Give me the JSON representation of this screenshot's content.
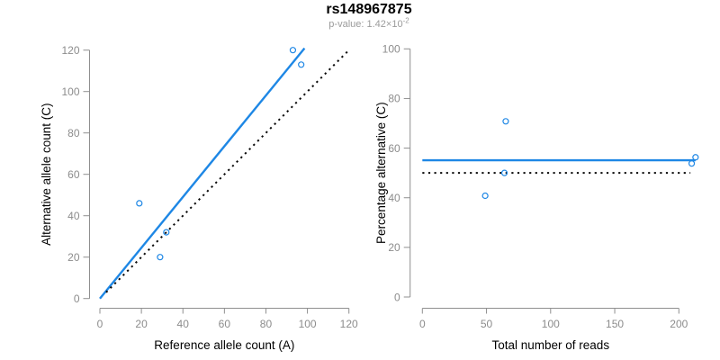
{
  "header": {
    "title": "rs148967875",
    "subtitle_label": "p-value: 1.42×10",
    "subtitle_exponent": "-2"
  },
  "colors": {
    "accent_blue": "#1E87E5",
    "axis_line_gray": "#8F8F8F",
    "tick_label_gray": "#8C8C8C",
    "axis_title_black": "#000000",
    "subtitle_gray": "#9B9B9B",
    "reference_line_black": "#0A0A0A",
    "background": "#FFFFFF"
  },
  "chart_data": [
    {
      "id": "ref-vs-alt-scatter",
      "type": "scatter",
      "title": "rs148967875",
      "xlabel": "Reference allele count (A)",
      "ylabel": "Alternative allele count (C)",
      "xlim": [
        0,
        120
      ],
      "ylim": [
        0,
        120
      ],
      "xticks": [
        0,
        20,
        40,
        60,
        80,
        100,
        120
      ],
      "yticks": [
        0,
        20,
        40,
        60,
        80,
        100,
        120
      ],
      "grid": false,
      "legend": "none",
      "marker": "open-circle",
      "points": [
        [
          19,
          46
        ],
        [
          29,
          20
        ],
        [
          32,
          32
        ],
        [
          93,
          120
        ],
        [
          97,
          113
        ]
      ],
      "lines": [
        {
          "name": "fit-line",
          "style": "solid",
          "color_key": "accent_blue",
          "width": 2.4,
          "from": [
            0,
            0
          ],
          "to": [
            98.6,
            120.9
          ]
        },
        {
          "name": "identity-line",
          "style": "dotted",
          "color_key": "reference_line_black",
          "width": 2,
          "from": [
            3,
            3
          ],
          "to": [
            120,
            120
          ]
        }
      ]
    },
    {
      "id": "reads-vs-percentage-scatter",
      "type": "scatter",
      "title": "rs148967875",
      "xlabel": "Total number of reads",
      "ylabel": "Percentage alternative (C)",
      "xlim": [
        0,
        213
      ],
      "ylim": [
        0,
        100
      ],
      "xticks": [
        0,
        50,
        100,
        150,
        200
      ],
      "yticks": [
        0,
        20,
        40,
        60,
        80,
        100
      ],
      "grid": false,
      "legend": "none",
      "marker": "open-circle",
      "points": [
        [
          49,
          40.8
        ],
        [
          64,
          50
        ],
        [
          65,
          70.8
        ],
        [
          210,
          53.8
        ],
        [
          213,
          56.3
        ]
      ],
      "lines": [
        {
          "name": "fit-line",
          "style": "solid",
          "color_key": "accent_blue",
          "width": 2.4,
          "from": [
            0,
            55.1
          ],
          "to": [
            213,
            55.1
          ]
        },
        {
          "name": "reference-line",
          "style": "dotted",
          "color_key": "reference_line_black",
          "width": 2,
          "from": [
            0,
            50
          ],
          "to": [
            209,
            50
          ]
        }
      ]
    }
  ]
}
